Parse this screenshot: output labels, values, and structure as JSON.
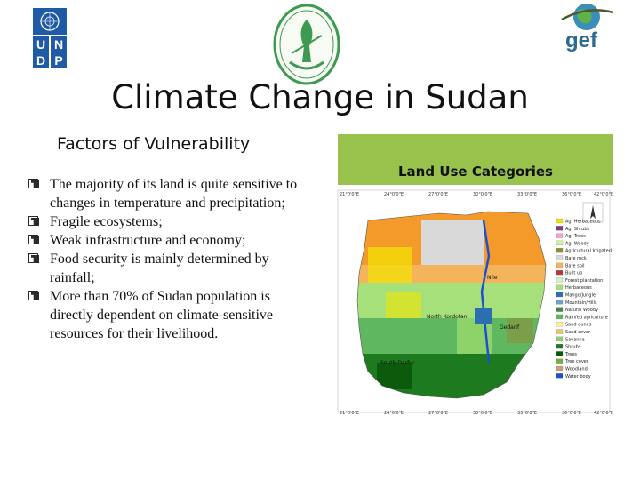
{
  "logos": {
    "undp_letters": [
      "U",
      "N",
      "D",
      "P"
    ]
  },
  "slide": {
    "title": "Climate Change in Sudan",
    "subtitle": "Factors of Vulnerability",
    "bullets": [
      "The majority of its land is quite sensitive to changes in temperature and precipitation;",
      "Fragile ecosystems;",
      "Weak infrastructure and economy;",
      "Food security is mainly determined by rainfall;",
      "More than 70% of Sudan population is directly dependent on climate-sensitive resources for their livelihood."
    ]
  },
  "map": {
    "title": "Land Use Categories",
    "header_color": "#98c24b",
    "top_ticks": [
      "21°0'0\"E",
      "24°0'0\"E",
      "27°0'0\"E",
      "30°0'0\"E",
      "33°0'0\"E",
      "36°0'0\"E",
      "42°0'0\"E"
    ],
    "bottom_ticks": [
      "21°0'0\"E",
      "24°0'0\"E",
      "27°0'0\"E",
      "30°0'0\"E",
      "33°0'0\"E",
      "36°0'0\"E",
      "42°0'0\"E"
    ],
    "place_labels": [
      "Nile",
      "North Kordofan",
      "Gedarif",
      "South Darfur"
    ],
    "legend": [
      {
        "label": "Ag. Herbaceous",
        "color": "#f2e400"
      },
      {
        "label": "Ag. Shrubs",
        "color": "#7a3b8c"
      },
      {
        "label": "Ag. Trees",
        "color": "#f6a4c8"
      },
      {
        "label": "Ag. Woody",
        "color": "#c9f7a0"
      },
      {
        "label": "Agricultural Irrigated",
        "color": "#8e8e3a"
      },
      {
        "label": "Bare rock",
        "color": "#d9d9d9"
      },
      {
        "label": "Bare soil",
        "color": "#f4b45c"
      },
      {
        "label": "Built up",
        "color": "#b73a3a"
      },
      {
        "label": "Forest plantation",
        "color": "#d4f0c4"
      },
      {
        "label": "Herbaceous",
        "color": "#a6e07a"
      },
      {
        "label": "Mango/Jungle",
        "color": "#2a6fb0"
      },
      {
        "label": "Mountain/Hills",
        "color": "#6fa0d0"
      },
      {
        "label": "Natural Woody",
        "color": "#3d8f3d"
      },
      {
        "label": "Rainfed agriculture",
        "color": "#5fb85f"
      },
      {
        "label": "Sand dunes",
        "color": "#f9f29a"
      },
      {
        "label": "Sand cover",
        "color": "#e8c36a"
      },
      {
        "label": "Savanna",
        "color": "#8ed36a"
      },
      {
        "label": "Shrubs",
        "color": "#1e7a1e"
      },
      {
        "label": "Trees",
        "color": "#0c5a0c"
      },
      {
        "label": "Tree cover",
        "color": "#76b043"
      },
      {
        "label": "Woodland",
        "color": "#c8a07a"
      },
      {
        "label": "Water body",
        "color": "#1e4fd0"
      }
    ]
  }
}
